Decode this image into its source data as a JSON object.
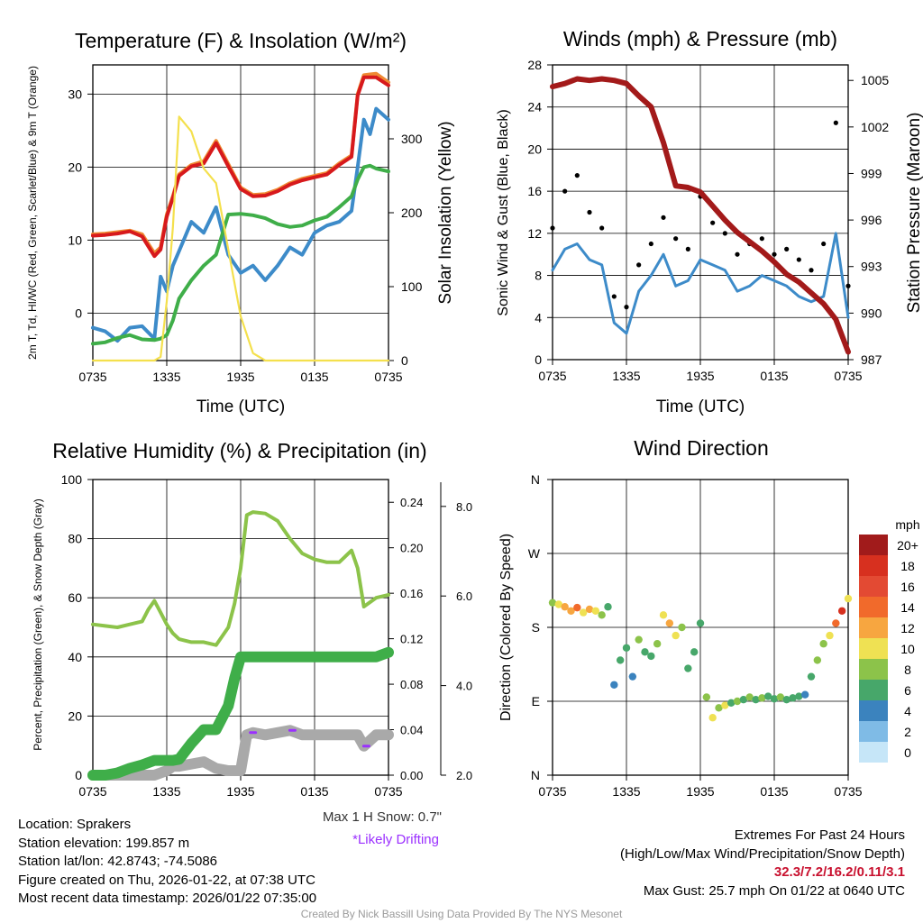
{
  "chart_data": [
    {
      "type": "line",
      "title": "Temperature (F) & Insolation (W/m²)",
      "xlabel": "Time (UTC)",
      "ylabel": "2m T, Td, HI/WC (Red, Green, Scarlet/Blue) & 9m T (Orange)",
      "y2label": "Solar Insolation (Yellow)",
      "x_ticks": [
        "0735",
        "1335",
        "1935",
        "0135",
        "0735"
      ],
      "ylim": [
        -6.5,
        34
      ],
      "y_ticks": [
        0,
        10,
        20,
        30
      ],
      "y2lim": [
        0,
        400
      ],
      "y2_ticks": [
        0,
        100,
        200,
        300
      ],
      "x": [
        0,
        1,
        2,
        3,
        4,
        5,
        5.5,
        6,
        6.5,
        7,
        8,
        9,
        10,
        11,
        12,
        13,
        14,
        15,
        16,
        17,
        18,
        19,
        20,
        21,
        21.5,
        22,
        22.5,
        23,
        24
      ],
      "series": [
        {
          "name": "9m T",
          "color": "#ef8a33",
          "axis": "y",
          "values": [
            10.8,
            10.9,
            11.1,
            11.3,
            10.8,
            8.2,
            9.0,
            13.5,
            16.0,
            19.0,
            20.3,
            20.8,
            23.6,
            20.4,
            17.2,
            16.2,
            16.3,
            16.9,
            17.8,
            18.4,
            18.8,
            19.2,
            20.5,
            21.6,
            30.0,
            32.6,
            32.7,
            32.8,
            31.6
          ]
        },
        {
          "name": "2m T",
          "color": "#d7191c",
          "axis": "y",
          "values": [
            10.6,
            10.7,
            10.9,
            11.2,
            10.5,
            7.8,
            8.7,
            13.2,
            15.8,
            18.8,
            20.1,
            20.5,
            23.3,
            20.1,
            17.0,
            16.0,
            16.1,
            16.7,
            17.6,
            18.2,
            18.6,
            19.0,
            20.3,
            21.4,
            29.8,
            32.3,
            32.3,
            32.3,
            31.2
          ]
        },
        {
          "name": "HI/WC",
          "color": "#3d8bc9",
          "axis": "y",
          "values": [
            -2.0,
            -2.5,
            -3.8,
            -2.0,
            -1.8,
            -3.5,
            5.0,
            3.0,
            6.5,
            8.5,
            12.5,
            11.0,
            14.5,
            8.0,
            5.5,
            6.5,
            4.5,
            6.5,
            9.0,
            8.0,
            11.0,
            12.0,
            12.5,
            14.0,
            20.0,
            26.5,
            24.5,
            28.0,
            26.5
          ]
        },
        {
          "name": "Dewpoint",
          "color": "#3fae49",
          "axis": "y",
          "values": [
            -4.2,
            -4.0,
            -3.4,
            -3.0,
            -3.6,
            -3.7,
            -3.5,
            -3.0,
            -1.0,
            2.0,
            4.5,
            6.5,
            8.0,
            13.5,
            13.6,
            13.4,
            13.0,
            12.2,
            11.8,
            12.0,
            12.7,
            13.2,
            14.5,
            16.0,
            18.3,
            20.0,
            20.2,
            19.8,
            19.4
          ]
        },
        {
          "name": "Solar Insolation",
          "color": "#f4e04d",
          "axis": "y2",
          "values": [
            0,
            0,
            0,
            0,
            0,
            0,
            5,
            80,
            180,
            330,
            310,
            260,
            240,
            150,
            60,
            10,
            0,
            0,
            0,
            0,
            0,
            0,
            0,
            0,
            0,
            0,
            0,
            0,
            0
          ]
        }
      ]
    },
    {
      "type": "line",
      "title": "Winds (mph) & Pressure (mb)",
      "xlabel": "Time (UTC)",
      "ylabel": "Sonic Wind & Gust (Blue, Black)",
      "y2label": "Station Pressure (Maroon)",
      "x_ticks": [
        "0735",
        "1335",
        "1935",
        "0135",
        "0735"
      ],
      "ylim": [
        0,
        28
      ],
      "y_ticks": [
        0,
        4,
        8,
        12,
        16,
        20,
        24,
        28
      ],
      "y2lim": [
        987,
        1006
      ],
      "y2_ticks": [
        987,
        990,
        993,
        996,
        999,
        1002,
        1005
      ],
      "x": [
        0,
        1,
        2,
        3,
        4,
        5,
        6,
        7,
        8,
        9,
        10,
        11,
        12,
        13,
        14,
        15,
        16,
        17,
        18,
        19,
        20,
        21,
        22,
        23,
        24
      ],
      "series": [
        {
          "name": "Sonic Wind",
          "color": "#3d8bc9",
          "axis": "y",
          "values": [
            8.5,
            10.5,
            11.0,
            9.5,
            9.0,
            3.5,
            2.5,
            6.5,
            8.0,
            10.0,
            7.0,
            7.5,
            9.5,
            9.0,
            8.5,
            6.5,
            7.0,
            8.0,
            7.5,
            7.0,
            6.0,
            5.5,
            6.0,
            12.0,
            4.0
          ]
        },
        {
          "name": "Gust",
          "color": "#000000",
          "axis": "y",
          "points": true,
          "values": [
            12.5,
            16.0,
            17.5,
            14.0,
            12.5,
            6.0,
            5.0,
            9.0,
            11.0,
            13.5,
            11.5,
            10.5,
            15.5,
            13.0,
            12.0,
            10.0,
            11.0,
            11.5,
            10.0,
            10.5,
            9.5,
            8.5,
            11.0,
            22.5,
            7.0
          ]
        },
        {
          "name": "Station Pressure",
          "color": "#a31a1a",
          "axis": "y2",
          "values": [
            1004.6,
            1004.8,
            1005.1,
            1005.0,
            1005.1,
            1005.0,
            1004.8,
            1004.0,
            1003.3,
            1001.0,
            998.2,
            998.1,
            997.8,
            996.9,
            996.0,
            995.2,
            994.6,
            994.0,
            993.3,
            992.5,
            992.0,
            991.3,
            990.6,
            989.6,
            987.5
          ]
        }
      ]
    },
    {
      "type": "line",
      "title": "Relative Humidity (%) & Precipitation (in)",
      "ylabel": "Percent, Precipitation (Green), & Snow Depth (Gray)",
      "x_ticks": [
        "0735",
        "1335",
        "1935",
        "0135",
        "0735"
      ],
      "ylim": [
        0,
        100
      ],
      "y_ticks": [
        0,
        20,
        40,
        60,
        80,
        100
      ],
      "y2lim": [
        0,
        0.26
      ],
      "y2_ticks": [
        "0.00",
        "0.04",
        "0.08",
        "0.12",
        "0.16",
        "0.20",
        "0.24"
      ],
      "y3lim": [
        2.0,
        8.6
      ],
      "y3_ticks": [
        "2.0",
        "4.0",
        "6.0",
        "8.0"
      ],
      "x": [
        0,
        1,
        2,
        3,
        4,
        4.5,
        5,
        5.5,
        6,
        6.5,
        7,
        8,
        9,
        10,
        11,
        11.5,
        12,
        12.5,
        13,
        14,
        15,
        16,
        17,
        18,
        19,
        20,
        21,
        21.5,
        22,
        23,
        24
      ],
      "series": [
        {
          "name": "Relative Humidity",
          "color": "#8cc34a",
          "axis": "y",
          "values": [
            51,
            50.5,
            50,
            51,
            52,
            56,
            59,
            55,
            51,
            48,
            46,
            45,
            45,
            44,
            50,
            58,
            70,
            88,
            89,
            88.5,
            86,
            80,
            75,
            73,
            72,
            72,
            76,
            70,
            57,
            60,
            61
          ]
        },
        {
          "name": "Precipitation",
          "color": "#3fae49",
          "axis": "y2",
          "values": [
            0,
            0,
            0.002,
            0.006,
            0.009,
            0.011,
            0.013,
            0.013,
            0.013,
            0.013,
            0.014,
            0.028,
            0.04,
            0.04,
            0.061,
            0.085,
            0.104,
            0.104,
            0.104,
            0.104,
            0.104,
            0.104,
            0.104,
            0.104,
            0.104,
            0.104,
            0.104,
            0.104,
            0.104,
            0.104,
            0.108
          ]
        },
        {
          "name": "Snow Depth",
          "color": "#a9a9a9",
          "axis": "y3",
          "values": [
            2.0,
            2.0,
            2.0,
            2.0,
            2.0,
            2.0,
            2.0,
            2.05,
            2.1,
            2.2,
            2.2,
            2.25,
            2.3,
            2.15,
            2.1,
            2.1,
            2.1,
            2.9,
            2.95,
            2.9,
            2.95,
            3.0,
            2.9,
            2.9,
            2.9,
            2.9,
            2.9,
            2.9,
            2.65,
            2.9,
            2.9
          ]
        }
      ],
      "drifting_times": [
        13.0,
        16.2,
        22.2
      ]
    },
    {
      "type": "scatter",
      "title": "Wind Direction",
      "ylabel": "Direction (Colored By Speed)",
      "x_ticks": [
        "0735",
        "1335",
        "1935",
        "0135",
        "0735"
      ],
      "y_ticks": [
        "N",
        "E",
        "S",
        "W",
        "N"
      ],
      "ylim": [
        0,
        360
      ],
      "colorbar_title": "mph",
      "colorbar_labels": [
        "20+",
        "18",
        "16",
        "14",
        "12",
        "10",
        "8",
        "6",
        "4",
        "2",
        "0"
      ],
      "colorbar_colors": [
        "#a11b1b",
        "#d7301f",
        "#e34a33",
        "#f16a2b",
        "#f7a640",
        "#efe153",
        "#8cc34a",
        "#47a76a",
        "#3b83be",
        "#7fbbe6",
        "#c6e6f8"
      ],
      "x": [
        0,
        0.5,
        1,
        1.5,
        2,
        2.5,
        3,
        3.5,
        4,
        4.5,
        5,
        5.5,
        6,
        6.5,
        7,
        7.5,
        8,
        8.5,
        9,
        9.5,
        10,
        10.5,
        11,
        11.5,
        12,
        12.5,
        13,
        13.5,
        14,
        14.5,
        15,
        15.5,
        16,
        16.5,
        17,
        17.5,
        18,
        18.5,
        19,
        19.5,
        20,
        20.5,
        21,
        21.5,
        22,
        22.5,
        23,
        23.5,
        24
      ],
      "direction": [
        210,
        208,
        205,
        200,
        204,
        198,
        202,
        200,
        195,
        205,
        110,
        140,
        155,
        120,
        165,
        150,
        145,
        160,
        195,
        185,
        170,
        180,
        130,
        150,
        185,
        95,
        70,
        82,
        85,
        88,
        90,
        92,
        95,
        92,
        94,
        96,
        93,
        95,
        92,
        94,
        96,
        98,
        120,
        140,
        160,
        170,
        185,
        200,
        215
      ],
      "speed": [
        8,
        10,
        12,
        11,
        14,
        10,
        12,
        9,
        8,
        6,
        3,
        5,
        6,
        4,
        7,
        6,
        5,
        8,
        9,
        12,
        10,
        7,
        5,
        6,
        6,
        8,
        10,
        7,
        9,
        6,
        7,
        5,
        8,
        6,
        7,
        5,
        6,
        7,
        5,
        6,
        6,
        4,
        6,
        7,
        8,
        9,
        14,
        18,
        9
      ]
    }
  ],
  "info": {
    "location": "Location: Sprakers",
    "elevation": "Station elevation: 199.857 m",
    "latlon": "Station lat/lon: 42.8743; -74.5086",
    "created": "Figure created on Thu, 2026-01-22, at 07:38 UTC",
    "recent": "Most recent data timestamp: 2026/01/22 07:35:00"
  },
  "extremes": {
    "heading": "Extremes For Past 24 Hours",
    "legend": "(High/Low/Max Wind/Precipitation/Snow Depth)",
    "values": "32.3/7.2/16.2/0.11/3.1",
    "max_gust": "Max Gust: 25.7 mph On 01/22 at 0640 UTC"
  },
  "snow_note": {
    "max_snow": "Max 1 H Snow: 0.7\"",
    "drifting": "*Likely Drifting",
    "drifting_color": "#9b30ff"
  },
  "credit": "Created By Nick Bassill Using Data Provided By The NYS Mesonet"
}
